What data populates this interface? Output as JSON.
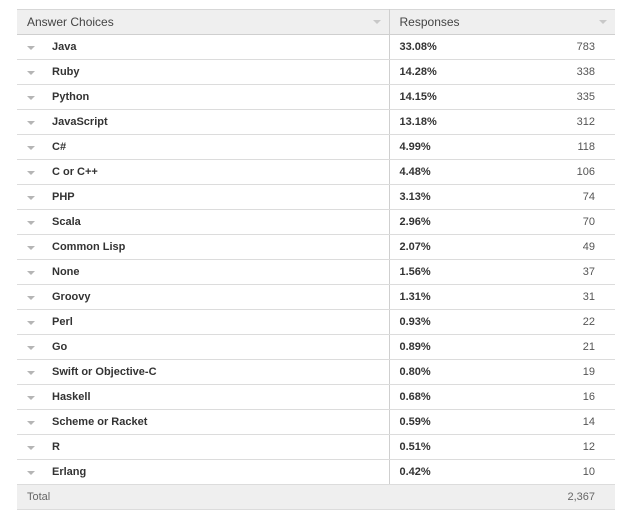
{
  "header": {
    "answer_choices": "Answer Choices",
    "responses": "Responses"
  },
  "rows": [
    {
      "choice": "Java",
      "percent": "33.08%",
      "count": "783"
    },
    {
      "choice": "Ruby",
      "percent": "14.28%",
      "count": "338"
    },
    {
      "choice": "Python",
      "percent": "14.15%",
      "count": "335"
    },
    {
      "choice": "JavaScript",
      "percent": "13.18%",
      "count": "312"
    },
    {
      "choice": "C#",
      "percent": "4.99%",
      "count": "118"
    },
    {
      "choice": "C or C++",
      "percent": "4.48%",
      "count": "106"
    },
    {
      "choice": "PHP",
      "percent": "3.13%",
      "count": "74"
    },
    {
      "choice": "Scala",
      "percent": "2.96%",
      "count": "70"
    },
    {
      "choice": "Common Lisp",
      "percent": "2.07%",
      "count": "49"
    },
    {
      "choice": "None",
      "percent": "1.56%",
      "count": "37"
    },
    {
      "choice": "Groovy",
      "percent": "1.31%",
      "count": "31"
    },
    {
      "choice": "Perl",
      "percent": "0.93%",
      "count": "22"
    },
    {
      "choice": "Go",
      "percent": "0.89%",
      "count": "21"
    },
    {
      "choice": "Swift or Objective-C",
      "percent": "0.80%",
      "count": "19"
    },
    {
      "choice": "Haskell",
      "percent": "0.68%",
      "count": "16"
    },
    {
      "choice": "Scheme or Racket",
      "percent": "0.59%",
      "count": "14"
    },
    {
      "choice": "R",
      "percent": "0.51%",
      "count": "12"
    },
    {
      "choice": "Erlang",
      "percent": "0.42%",
      "count": "10"
    }
  ],
  "total": {
    "label": "Total",
    "count": "2,367"
  }
}
